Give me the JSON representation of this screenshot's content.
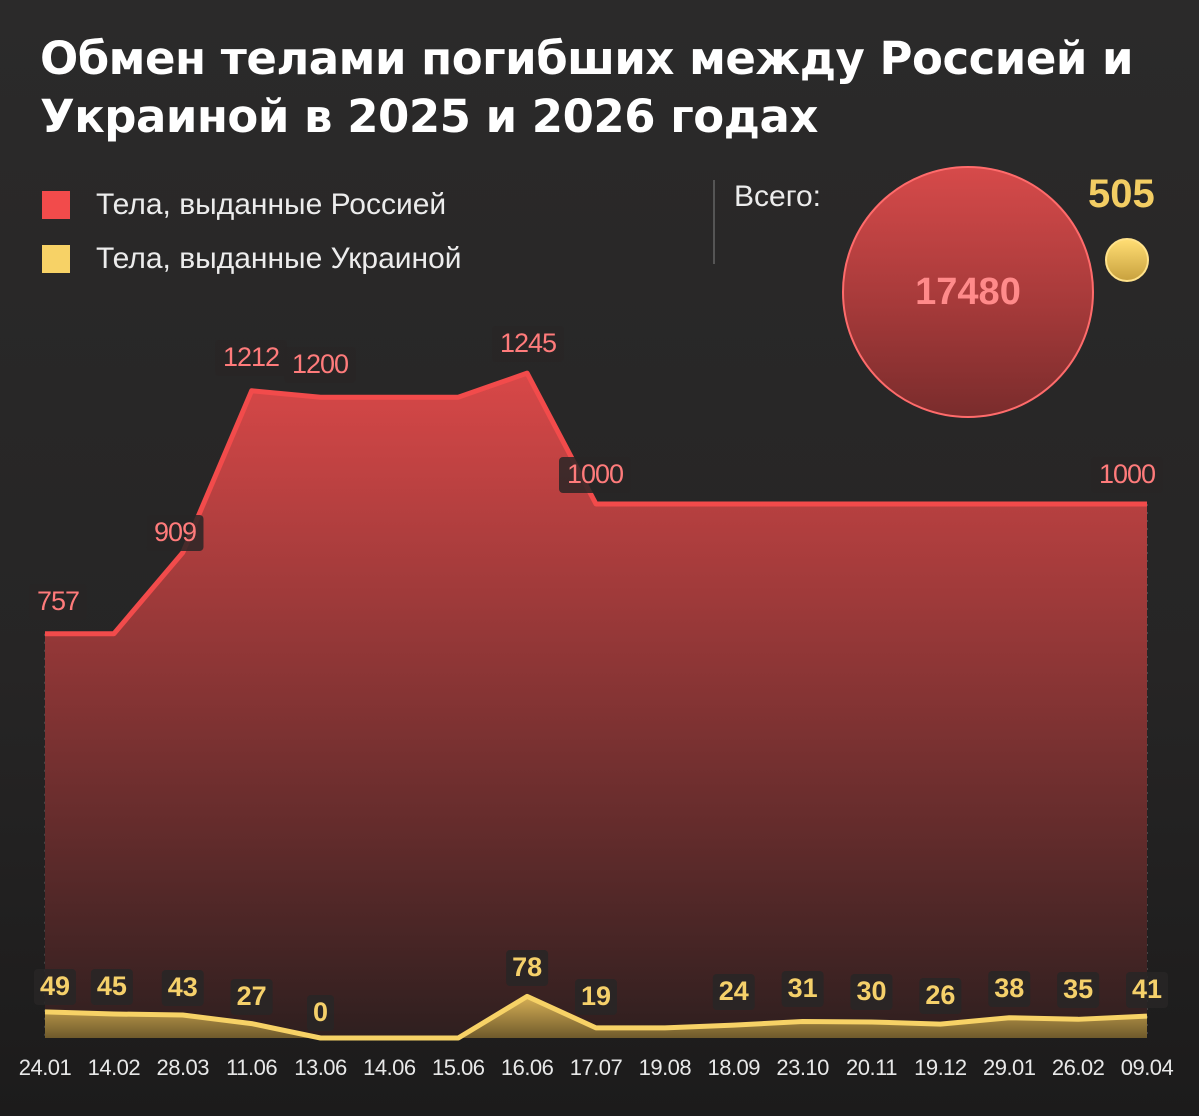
{
  "title": "Обмен телами погибших между Россией и Украиной в 2025 и 2026 годах",
  "legend": {
    "items": [
      {
        "label": "Тела, выданные Россией",
        "color": "#f24b4b"
      },
      {
        "label": "Тела, выданные Украиной",
        "color": "#f7d266"
      }
    ]
  },
  "totals": {
    "label": "Всего:",
    "russia": "17480",
    "ukraine": "505"
  },
  "colors": {
    "background": "#272626",
    "russia_line": "#f24b4b",
    "russia_label": "#ff7b7b",
    "ukraine_line": "#f7d266",
    "ukraine_label": "#f5d06a"
  },
  "chart_data": {
    "type": "area",
    "title": "Обмен телами погибших между Россией и Украиной в 2025 и 2026 годах",
    "xlabel": "",
    "ylabel": "",
    "categories": [
      "24.01",
      "14.02",
      "28.03",
      "11.06",
      "13.06",
      "14.06",
      "15.06",
      "16.06",
      "17.07",
      "19.08",
      "18.09",
      "23.10",
      "20.11",
      "19.12",
      "29.01",
      "26.02",
      "09.04"
    ],
    "series": [
      {
        "name": "Тела, выданные Россией",
        "values": [
          757,
          757,
          909,
          1212,
          1200,
          1200,
          1200,
          1245,
          1000,
          1000,
          1000,
          1000,
          1000,
          1000,
          1000,
          1000,
          1000
        ],
        "labels": [
          "757",
          "",
          "909",
          "1212",
          "1200",
          "",
          "",
          "1245",
          "1000",
          "",
          "",
          "",
          "",
          "",
          "",
          "",
          "1000"
        ]
      },
      {
        "name": "Тела, выданные Украиной",
        "values": [
          49,
          45,
          43,
          27,
          0,
          0,
          0,
          78,
          19,
          19,
          24,
          31,
          30,
          26,
          38,
          35,
          41
        ],
        "labels": [
          "49",
          "45",
          "43",
          "27",
          "0",
          "",
          "",
          "78",
          "19",
          "",
          "24",
          "31",
          "30",
          "26",
          "38",
          "35",
          "41"
        ]
      }
    ],
    "totals": {
      "Россия": 17480,
      "Украина": 505
    },
    "grid": "vertical dotted lines at each category",
    "legend_position": "top-left",
    "ylim": [
      0,
      1300
    ]
  }
}
